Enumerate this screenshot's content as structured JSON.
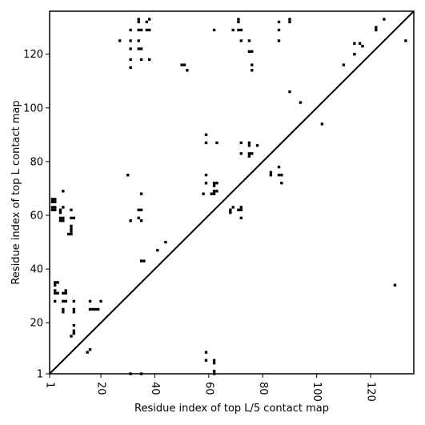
{
  "chart_data": {
    "type": "scatter",
    "xlabel": "Residue index of top L/5 contact map",
    "ylabel": "Residue index of top L contact map",
    "xlim": [
      1,
      136
    ],
    "ylim": [
      1,
      136
    ],
    "x_ticks": [
      1,
      20,
      40,
      60,
      80,
      100,
      120
    ],
    "y_ticks": [
      1,
      20,
      40,
      60,
      80,
      100,
      120
    ],
    "diagonal_line": true,
    "grid": false,
    "marker_color": "#000000",
    "upper_points": [
      [
        27,
        125
      ],
      [
        31,
        129
      ],
      [
        31,
        125
      ],
      [
        31,
        122
      ],
      [
        31,
        118
      ],
      [
        31,
        115
      ],
      [
        34,
        133
      ],
      [
        34,
        132
      ],
      [
        34,
        129
      ],
      [
        34,
        125
      ],
      [
        34,
        122
      ],
      [
        35,
        129
      ],
      [
        35,
        122
      ],
      [
        35,
        118
      ],
      [
        37,
        132
      ],
      [
        37,
        129
      ],
      [
        38,
        133
      ],
      [
        38,
        129
      ],
      [
        38,
        118
      ],
      [
        50,
        116
      ],
      [
        51,
        116
      ],
      [
        52,
        114
      ],
      [
        62,
        129
      ],
      [
        69,
        129
      ],
      [
        71,
        133
      ],
      [
        71,
        132
      ],
      [
        71,
        129
      ],
      [
        72,
        129
      ],
      [
        72,
        125
      ],
      [
        75,
        125
      ],
      [
        75,
        121
      ],
      [
        76,
        121
      ],
      [
        76,
        116
      ],
      [
        76,
        114
      ],
      [
        86,
        132
      ],
      [
        86,
        129
      ],
      [
        86,
        125
      ],
      [
        90,
        133
      ],
      [
        90,
        132
      ],
      [
        90,
        106
      ],
      [
        94,
        102
      ],
      [
        102,
        94
      ],
      [
        110,
        116
      ],
      [
        114,
        124
      ],
      [
        114,
        120
      ],
      [
        116,
        124
      ],
      [
        117,
        123
      ],
      [
        122,
        130
      ],
      [
        122,
        129
      ],
      [
        125,
        133
      ],
      [
        133,
        125
      ]
    ],
    "lower_points": [
      [
        2,
        66
      ],
      [
        3,
        66
      ],
      [
        2,
        65
      ],
      [
        3,
        65
      ],
      [
        2,
        63
      ],
      [
        3,
        63
      ],
      [
        2,
        62
      ],
      [
        3,
        62
      ],
      [
        6,
        69
      ],
      [
        6,
        63
      ],
      [
        5,
        62
      ],
      [
        5,
        61
      ],
      [
        5,
        59
      ],
      [
        6,
        59
      ],
      [
        5,
        58
      ],
      [
        6,
        58
      ],
      [
        9,
        62
      ],
      [
        9,
        59
      ],
      [
        10,
        59
      ],
      [
        9,
        56
      ],
      [
        9,
        55
      ],
      [
        9,
        54
      ],
      [
        8,
        53
      ],
      [
        9,
        53
      ],
      [
        3,
        35
      ],
      [
        4,
        35
      ],
      [
        3,
        34
      ],
      [
        3,
        32
      ],
      [
        3,
        31
      ],
      [
        4,
        31
      ],
      [
        6,
        31
      ],
      [
        7,
        32
      ],
      [
        7,
        31
      ],
      [
        3,
        28
      ],
      [
        6,
        28
      ],
      [
        7,
        28
      ],
      [
        10,
        28
      ],
      [
        6,
        25
      ],
      [
        6,
        24
      ],
      [
        10,
        25
      ],
      [
        10,
        24
      ],
      [
        10,
        19
      ],
      [
        10,
        17
      ],
      [
        10,
        16
      ],
      [
        9,
        15
      ],
      [
        16,
        28
      ],
      [
        20,
        28
      ],
      [
        16,
        25
      ],
      [
        17,
        25
      ],
      [
        18,
        25
      ],
      [
        19,
        25
      ],
      [
        16,
        10
      ],
      [
        15,
        9
      ],
      [
        30,
        75
      ],
      [
        31,
        58
      ],
      [
        34,
        62
      ],
      [
        35,
        62
      ],
      [
        35,
        68
      ],
      [
        34,
        59
      ],
      [
        35,
        58
      ],
      [
        35,
        43
      ],
      [
        36,
        43
      ],
      [
        41,
        47
      ],
      [
        44,
        50
      ],
      [
        31,
        1
      ],
      [
        35,
        1
      ],
      [
        59,
        90
      ],
      [
        59,
        87
      ],
      [
        63,
        87
      ],
      [
        59,
        75
      ],
      [
        59,
        72
      ],
      [
        58,
        68
      ],
      [
        62,
        72
      ],
      [
        63,
        72
      ],
      [
        62,
        71
      ],
      [
        62,
        69
      ],
      [
        63,
        69
      ],
      [
        61,
        68
      ],
      [
        62,
        68
      ],
      [
        68,
        62
      ],
      [
        69,
        63
      ],
      [
        68,
        61
      ],
      [
        71,
        62
      ],
      [
        72,
        63
      ],
      [
        72,
        62
      ],
      [
        72,
        59
      ],
      [
        72,
        87
      ],
      [
        75,
        87
      ],
      [
        75,
        86
      ],
      [
        78,
        86
      ],
      [
        72,
        83
      ],
      [
        75,
        83
      ],
      [
        76,
        83
      ],
      [
        75,
        82
      ],
      [
        83,
        76
      ],
      [
        83,
        75
      ],
      [
        86,
        78
      ],
      [
        86,
        75
      ],
      [
        87,
        75
      ],
      [
        87,
        72
      ],
      [
        129,
        34
      ],
      [
        59,
        9
      ],
      [
        59,
        6
      ],
      [
        62,
        6
      ],
      [
        62,
        5
      ],
      [
        62,
        2
      ],
      [
        62,
        1
      ]
    ]
  }
}
